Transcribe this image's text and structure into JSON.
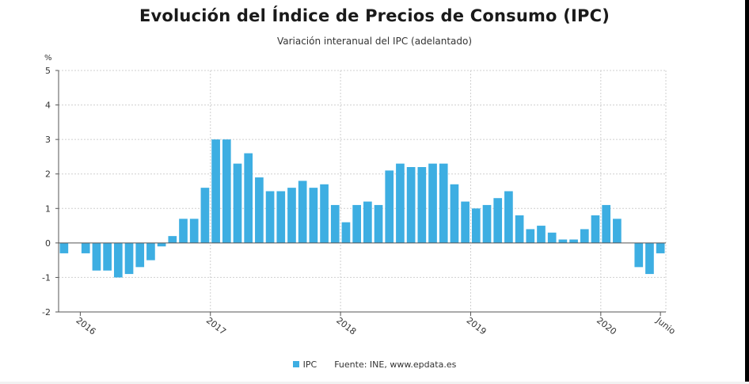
{
  "title": "Evolución del Índice de Precios de Consumo (IPC)",
  "subtitle": "Variación interanual del IPC (adelantado)",
  "unit": "%",
  "legend": {
    "series": "IPC",
    "source": "Fuente: INE, www.epdata.es"
  },
  "colors": {
    "bar": "#3daee2",
    "grid": "#cfcfcf",
    "axis": "#555555",
    "text": "#333333"
  },
  "chart_data": {
    "type": "bar",
    "title": "Evolución del Índice de Precios de Consumo (IPC)",
    "subtitle": "Variación interanual del IPC (adelantado)",
    "ylabel": "%",
    "ylim": [
      -2,
      5
    ],
    "yticks": [
      -2,
      -1,
      0,
      1,
      2,
      3,
      4,
      5
    ],
    "grid": true,
    "legend_position": "bottom",
    "x_tick_labels": [
      {
        "label": "2016",
        "index": 2
      },
      {
        "label": "2017",
        "index": 14
      },
      {
        "label": "2018",
        "index": 26
      },
      {
        "label": "2019",
        "index": 38
      },
      {
        "label": "2020",
        "index": 50
      },
      {
        "label": "Junio",
        "index": 55
      }
    ],
    "series": [
      {
        "name": "IPC",
        "values": [
          -0.3,
          0.0,
          -0.3,
          -0.8,
          -0.8,
          -1.0,
          -0.9,
          -0.7,
          -0.5,
          -0.1,
          0.2,
          0.7,
          0.7,
          1.6,
          3.0,
          3.0,
          2.3,
          2.6,
          1.9,
          1.5,
          1.5,
          1.6,
          1.8,
          1.6,
          1.7,
          1.1,
          0.6,
          1.1,
          1.2,
          1.1,
          2.1,
          2.3,
          2.2,
          2.2,
          2.3,
          2.3,
          1.7,
          1.2,
          1.0,
          1.1,
          1.3,
          1.5,
          0.8,
          0.4,
          0.5,
          0.3,
          0.1,
          0.1,
          0.4,
          0.8,
          1.1,
          0.7,
          0.0,
          -0.7,
          -0.9,
          -0.3
        ]
      }
    ]
  }
}
